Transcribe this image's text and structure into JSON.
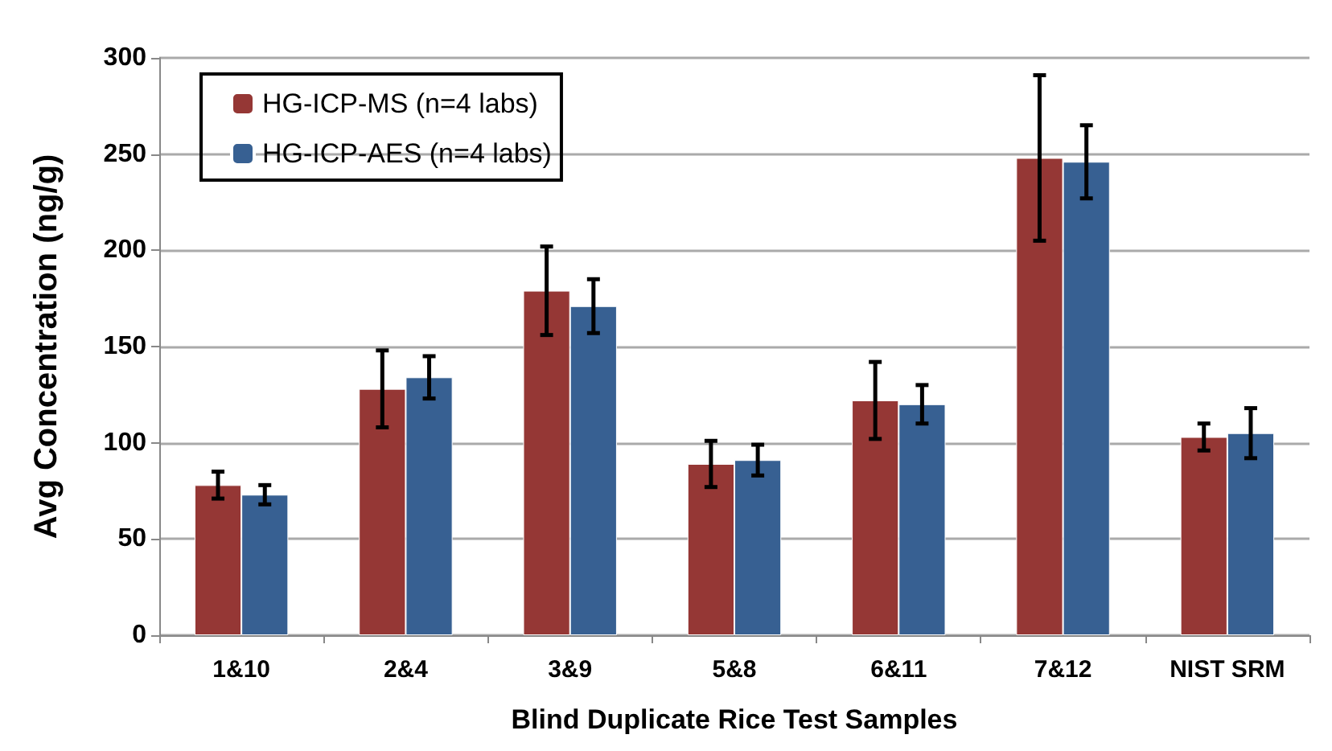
{
  "chart_data": {
    "type": "bar",
    "xlabel": "Blind Duplicate Rice Test Samples",
    "ylabel": "Avg Concentration (ng/g)",
    "categories": [
      "1&10",
      "2&4",
      "3&9",
      "5&8",
      "6&11",
      "7&12",
      "NIST SRM"
    ],
    "series": [
      {
        "name": "HG-ICP-MS (n=4 labs)",
        "color": "#953735",
        "values": [
          78,
          128,
          179,
          89,
          122,
          248,
          103
        ],
        "errors": [
          7,
          20,
          23,
          12,
          20,
          43,
          7
        ]
      },
      {
        "name": "HG-ICP-AES (n=4 labs)",
        "color": "#376092",
        "values": [
          73,
          134,
          171,
          91,
          120,
          246,
          105
        ],
        "errors": [
          5,
          11,
          14,
          8,
          10,
          19,
          13
        ]
      }
    ],
    "ylim": [
      0,
      300
    ],
    "yticks": [
      0,
      50,
      100,
      150,
      200,
      250,
      300
    ],
    "grid": "y",
    "legend": "top left"
  }
}
